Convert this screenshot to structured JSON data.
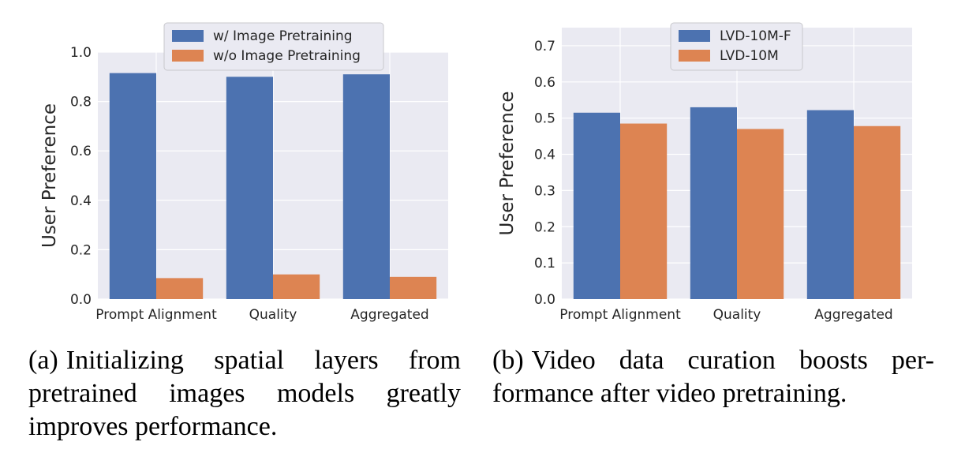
{
  "chart_data": [
    {
      "type": "bar",
      "categories": [
        "Prompt Alignment",
        "Quality",
        "Aggregated"
      ],
      "series": [
        {
          "name": "w/ Image Pretraining",
          "values": [
            0.915,
            0.9,
            0.91
          ],
          "color": "#4c72b0"
        },
        {
          "name": "w/o Image Pretraining",
          "values": [
            0.085,
            0.1,
            0.09
          ],
          "color": "#dd8452"
        }
      ],
      "ylabel": "User Preference",
      "ylim": [
        0,
        1.0
      ],
      "yticks": [
        "0.0",
        "0.2",
        "0.4",
        "0.6",
        "0.8",
        "1.0"
      ],
      "grid": true,
      "legend": "top-center",
      "background": "#eaeaf2"
    },
    {
      "type": "bar",
      "categories": [
        "Prompt Alignment",
        "Quality",
        "Aggregated"
      ],
      "series": [
        {
          "name": "LVD-10M-F",
          "values": [
            0.515,
            0.53,
            0.522
          ],
          "color": "#4c72b0"
        },
        {
          "name": "LVD-10M",
          "values": [
            0.485,
            0.47,
            0.478
          ],
          "color": "#dd8452"
        }
      ],
      "ylabel": "User Preference",
      "ylim": [
        0,
        0.75
      ],
      "yticks": [
        "0.0",
        "0.1",
        "0.2",
        "0.3",
        "0.4",
        "0.5",
        "0.6",
        "0.7"
      ],
      "grid": true,
      "legend": "top-center",
      "background": "#eaeaf2"
    }
  ],
  "captions": [
    {
      "tag": "(a)",
      "text": "Initializing spatial layers from pretrained images models greatly improves performance."
    },
    {
      "tag": "(b)",
      "text": "Video data curation boosts per-formance after video pretraining."
    }
  ]
}
